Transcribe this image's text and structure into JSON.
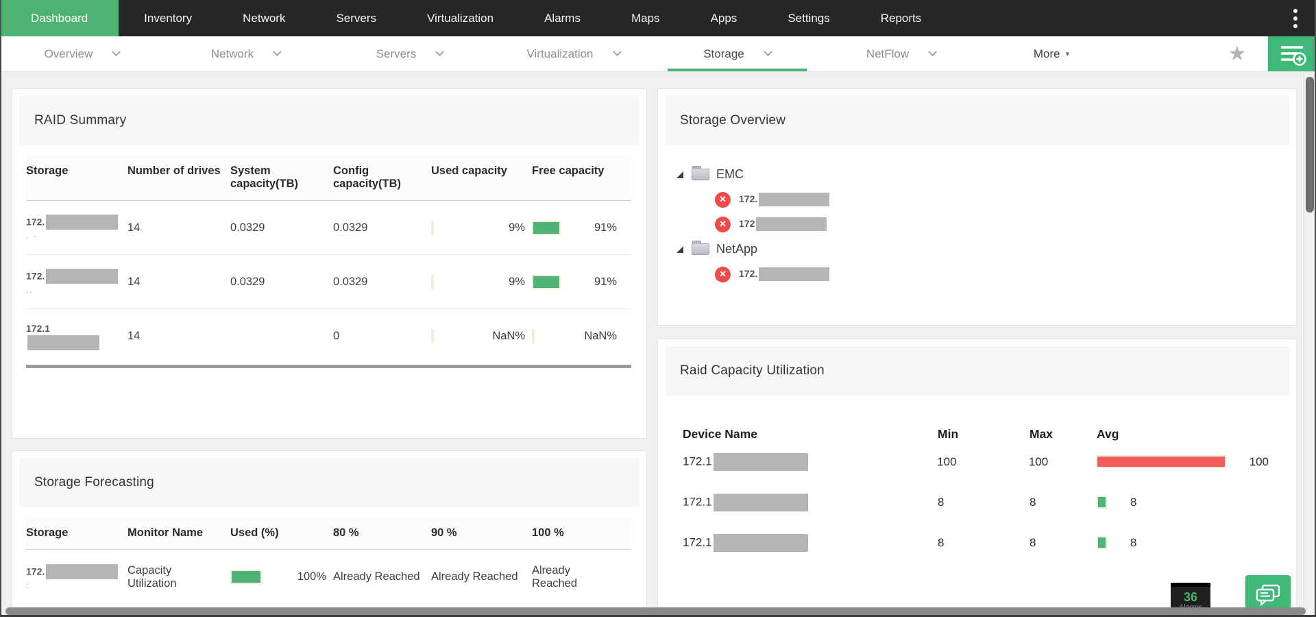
{
  "colors": {
    "accent_green": "#4db373",
    "button_green": "#3fb878",
    "bar_green": "#4db377",
    "bar_red": "#f25c5c",
    "bar_border_cream": "#f2edd7",
    "error_red": "#ef4b4b",
    "nav_dark": "#272727",
    "redaction_gray": "#b5b5b5"
  },
  "top_nav": {
    "items": [
      {
        "label": "Dashboard",
        "active": true
      },
      {
        "label": "Inventory",
        "active": false
      },
      {
        "label": "Network",
        "active": false
      },
      {
        "label": "Servers",
        "active": false
      },
      {
        "label": "Virtualization",
        "active": false
      },
      {
        "label": "Alarms",
        "active": false
      },
      {
        "label": "Maps",
        "active": false
      },
      {
        "label": "Apps",
        "active": false
      },
      {
        "label": "Settings",
        "active": false
      },
      {
        "label": "Reports",
        "active": false
      }
    ],
    "kebab_menu": "more-options"
  },
  "sub_nav": {
    "items": [
      {
        "label": "Overview",
        "active": false
      },
      {
        "label": "Network",
        "active": false
      },
      {
        "label": "Servers",
        "active": false
      },
      {
        "label": "Virtualization",
        "active": false
      },
      {
        "label": "Storage",
        "active": true
      },
      {
        "label": "NetFlow",
        "active": false
      }
    ],
    "more_label": "More",
    "star_icon": "favorite-star",
    "add_button_icon": "add-dashboard"
  },
  "raid_summary": {
    "title": "RAID Summary",
    "columns": [
      "Storage",
      "Number of drives",
      "System capacity(TB)",
      "Config capacity(TB)",
      "Used capacity",
      "Free capacity"
    ],
    "rows": [
      {
        "storage_prefix": "172.",
        "storage_redacted": true,
        "storage_sub": ". ·",
        "drives": "14",
        "system": "0.0329",
        "config": "0.0329",
        "used_pct": 9,
        "used_label": "9%",
        "free_pct": 91,
        "free_label": "91%"
      },
      {
        "storage_prefix": "172.",
        "storage_redacted": true,
        "storage_sub": "..",
        "drives": "14",
        "system": "0.0329",
        "config": "0.0329",
        "used_pct": 9,
        "used_label": "9%",
        "free_pct": 91,
        "free_label": "91%"
      },
      {
        "storage_prefix": "172.1",
        "storage_redacted": true,
        "storage_sub": "",
        "drives": "14",
        "system": "",
        "config": "0",
        "used_pct": null,
        "used_label": "NaN%",
        "free_pct": null,
        "free_label": "NaN%"
      }
    ]
  },
  "storage_forecasting": {
    "title": "Storage Forecasting",
    "columns": [
      "Storage",
      "Monitor Name",
      "Used (%)",
      "80 %",
      "90 %",
      "100 %"
    ],
    "rows": [
      {
        "storage_prefix": "172.",
        "storage_redacted": true,
        "storage_sub": ":",
        "monitor": "Capacity Utilization",
        "used_pct": 100,
        "used_label": "100%",
        "p80": "Already Reached",
        "p90": "Already Reached",
        "p100": "Already Reached"
      }
    ]
  },
  "storage_overview": {
    "title": "Storage Overview",
    "tree": [
      {
        "group": "EMC",
        "children": [
          {
            "ip_prefix": "172.",
            "status": "error"
          },
          {
            "ip_prefix": "172",
            "status": "error"
          }
        ]
      },
      {
        "group": "NetApp",
        "children": [
          {
            "ip_prefix": "172.",
            "status": "error"
          }
        ]
      }
    ]
  },
  "raid_capacity": {
    "title": "Raid Capacity Utilization",
    "columns": [
      "Device Name",
      "Min",
      "Max",
      "Avg"
    ],
    "rows": [
      {
        "device_prefix": "172.1",
        "min": "100",
        "max": "100",
        "avg": 100,
        "avg_label": "100",
        "bar_color": "red"
      },
      {
        "device_prefix": "172.1",
        "min": "8",
        "max": "8",
        "avg": 8,
        "avg_label": "8",
        "bar_color": "green"
      },
      {
        "device_prefix": "172.1",
        "min": "8",
        "max": "8",
        "avg": 8,
        "avg_label": "8",
        "bar_color": "green"
      }
    ]
  },
  "overlays": {
    "alarm_count": "36",
    "alarm_label": "Alarms",
    "chat_icon": "support-chat"
  }
}
